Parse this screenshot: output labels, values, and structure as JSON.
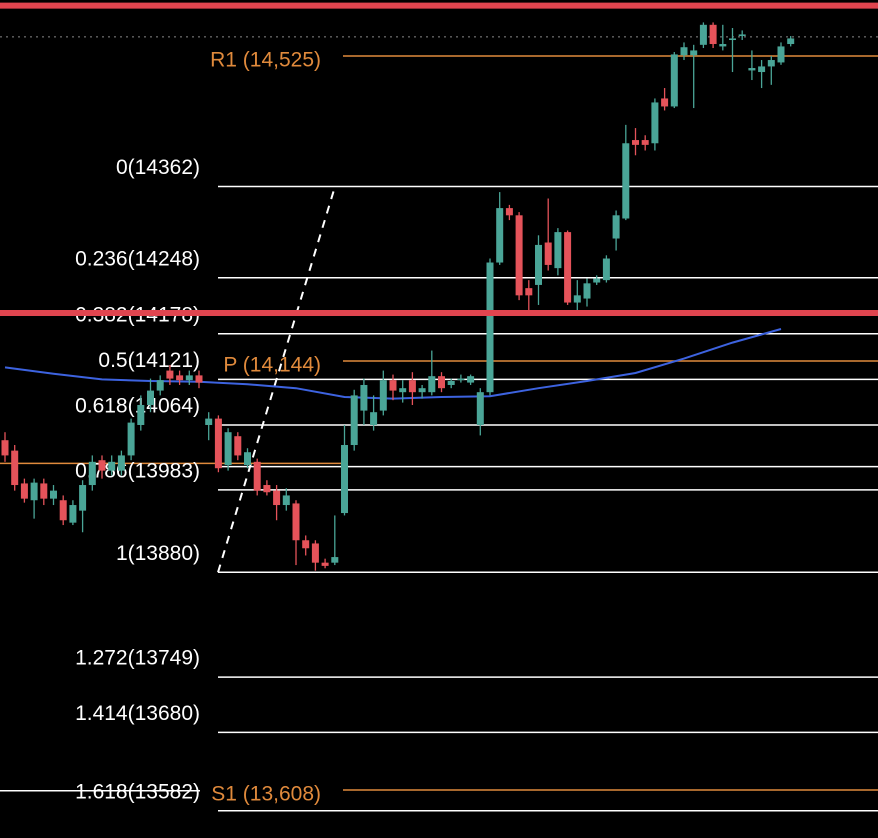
{
  "chart_data": {
    "type": "candlestick",
    "ylim": [
      13548,
      14595
    ],
    "up_color": "#4aa597",
    "down_color": "#e5535a",
    "open": [
      14045,
      14032,
      13991,
      13970,
      13991,
      13972,
      13970,
      13942,
      13957,
      13989,
      14020,
      14007,
      14007,
      14026,
      14064,
      14089,
      14107,
      14132,
      14126,
      14120,
      14126,
      14064,
      14072,
      14014,
      14050,
      14014,
      14018,
      13989,
      13982,
      13964,
      13966,
      13920,
      13916,
      13892,
      13892,
      13954,
      14039,
      14082,
      14064,
      14082,
      14120,
      14105,
      14120,
      14105,
      14105,
      14125,
      14114,
      14120,
      14117,
      14064,
      14105,
      14267,
      14335,
      14326,
      14235,
      14239,
      14292,
      14260,
      14305,
      14217,
      14222,
      14242,
      14245,
      14297,
      14322,
      14420,
      14420,
      14416,
      14472,
      14462,
      14526,
      14526,
      14539,
      14564,
      14537,
      14545,
      14550,
      14507,
      14505,
      14512,
      14517,
      14540
    ],
    "high": [
      14055,
      14039,
      13997,
      13997,
      13997,
      13989,
      13976,
      13970,
      13995,
      14026,
      14026,
      14026,
      14032,
      14072,
      14101,
      14122,
      14126,
      14139,
      14132,
      14132,
      14132,
      14080,
      14076,
      14060,
      14055,
      14035,
      14022,
      13995,
      13989,
      13985,
      13970,
      13926,
      13920,
      13897,
      13951,
      14064,
      14108,
      14122,
      14101,
      14132,
      14127,
      14120,
      14130,
      14114,
      14157,
      14130,
      14122,
      14127,
      14127,
      14110,
      14272,
      14355,
      14339,
      14330,
      14245,
      14301,
      14347,
      14310,
      14307,
      14245,
      14247,
      14251,
      14276,
      14332,
      14439,
      14435,
      14426,
      14472,
      14485,
      14530,
      14542,
      14539,
      14567,
      14567,
      14564,
      14560,
      14557,
      14532,
      14520,
      14525,
      14542,
      14550
    ],
    "low": [
      14018,
      13982,
      13967,
      13947,
      13964,
      13964,
      13939,
      13939,
      13930,
      13982,
      13997,
      14001,
      14001,
      14020,
      14057,
      14080,
      14101,
      14114,
      14114,
      14114,
      14110,
      14045,
      14005,
      14007,
      14020,
      14010,
      13976,
      13976,
      13945,
      13957,
      13889,
      13901,
      13882,
      13885,
      13889,
      13951,
      14032,
      14064,
      14057,
      14076,
      14095,
      14092,
      14089,
      14097,
      14101,
      14105,
      14110,
      14117,
      14114,
      14051,
      14101,
      14264,
      14320,
      14220,
      14205,
      14214,
      14257,
      14251,
      14214,
      14207,
      14212,
      14239,
      14242,
      14282,
      14320,
      14401,
      14407,
      14407,
      14457,
      14460,
      14520,
      14460,
      14535,
      14535,
      14532,
      14505,
      14545,
      14495,
      14485,
      14489,
      14514,
      14537
    ],
    "close": [
      14026,
      13989,
      13972,
      13992,
      13972,
      13982,
      13945,
      13964,
      13989,
      14018,
      14007,
      14018,
      14026,
      14067,
      14089,
      14107,
      14120,
      14122,
      14120,
      14126,
      14117,
      14072,
      14010,
      14055,
      14026,
      14030,
      13982,
      13980,
      13964,
      13976,
      13920,
      13910,
      13892,
      13888,
      13899,
      14039,
      14101,
      14114,
      14080,
      14120,
      14107,
      14110,
      14105,
      14110,
      14125,
      14110,
      14119,
      14122,
      14125,
      14105,
      14267,
      14335,
      14326,
      14226,
      14226,
      14289,
      14264,
      14305,
      14217,
      14226,
      14241,
      14247,
      14272,
      14326,
      14416,
      14414,
      14414,
      14467,
      14462,
      14527,
      14536,
      14532,
      14564,
      14540,
      14540,
      14547,
      14552,
      14510,
      14512,
      14520,
      14537,
      14547
    ],
    "ma": {
      "color": "#3d63e0",
      "x": [
        0,
        5,
        10,
        15,
        20,
        25,
        30,
        35,
        40,
        45,
        50,
        55,
        60,
        65,
        70,
        75,
        80
      ],
      "values": [
        14136,
        14128,
        14121,
        14119,
        14118,
        14115,
        14110,
        14099,
        14097,
        14099,
        14100,
        14110,
        14119,
        14129,
        14147,
        14167,
        14184
      ]
    },
    "fib": {
      "color": "#ffffff",
      "levels": [
        {
          "value": 14362,
          "label": "0(14362)"
        },
        {
          "value": 14248,
          "label": "0.236(14248)"
        },
        {
          "value": 14178,
          "label": "0.382(14178)"
        },
        {
          "value": 14121,
          "label": "0.5(14121)"
        },
        {
          "value": 14064,
          "label": "0.618(14064)"
        },
        {
          "value": 13983,
          "label": "0.786(13983)"
        },
        {
          "value": 13880,
          "label": "1(13880)"
        },
        {
          "value": 13749,
          "label": "1.272(13749)"
        },
        {
          "value": 13680,
          "label": "1.414(13680)"
        },
        {
          "value": 13582,
          "label": "1.618(13582)"
        }
      ],
      "extra_levels": [
        14012
      ]
    },
    "pivots": [
      {
        "value": 14525,
        "label": "R1 (14,525)",
        "color": "#e08a3c"
      },
      {
        "value": 14144,
        "label": "P (14,144)",
        "color": "#e08a3c"
      },
      {
        "value": 13608,
        "label": "S1 (13,608)",
        "color": "#e08a3c"
      }
    ],
    "previous_lines": [
      {
        "value": 14016,
        "color": "#e08a3c"
      },
      {
        "value": 13607,
        "color": "#ffffff"
      }
    ],
    "alert_lines": {
      "color": "#e0454f",
      "values": [
        14588,
        14204
      ]
    },
    "last_price": {
      "value": 14549,
      "color": "#8a8a8a"
    }
  }
}
